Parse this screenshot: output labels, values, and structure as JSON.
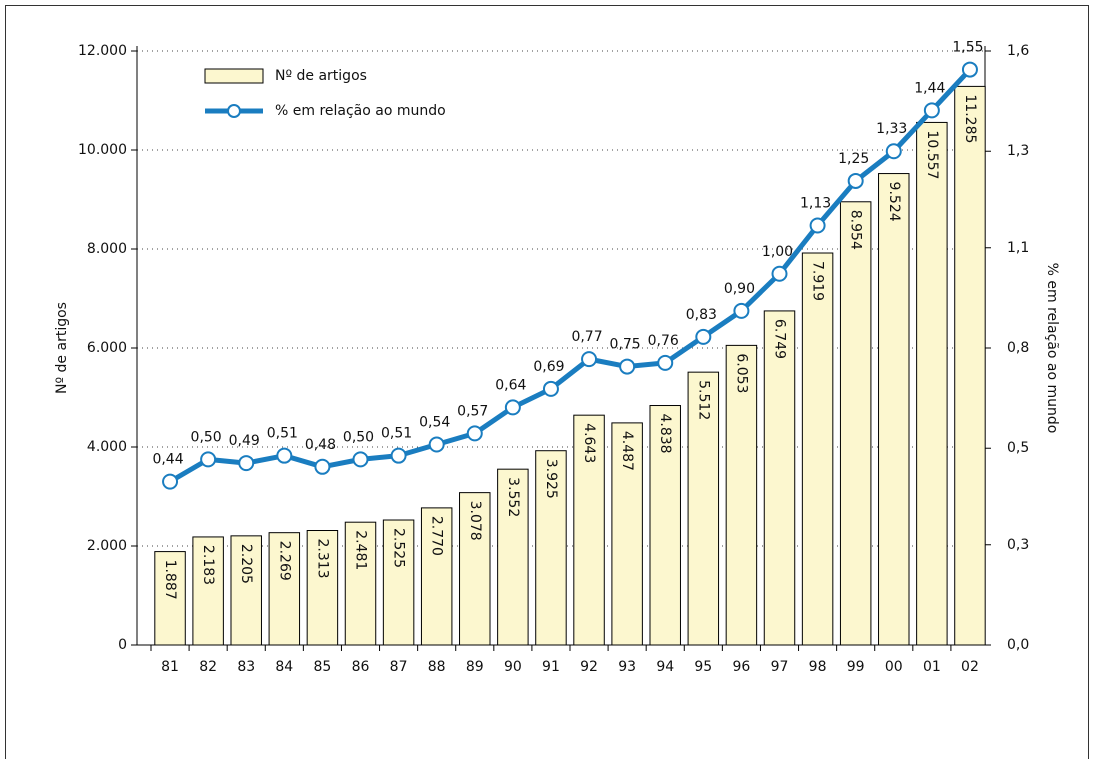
{
  "chart_data": {
    "type": "bar",
    "categories": [
      "81",
      "82",
      "83",
      "84",
      "85",
      "86",
      "87",
      "88",
      "89",
      "90",
      "91",
      "92",
      "93",
      "94",
      "95",
      "96",
      "97",
      "98",
      "99",
      "00",
      "01",
      "02"
    ],
    "series": [
      {
        "name": "Nº de artigos",
        "type": "bar",
        "color": "#fcf7cf",
        "values": [
          1887,
          2183,
          2205,
          2269,
          2313,
          2481,
          2525,
          2770,
          3078,
          3552,
          3925,
          4643,
          4487,
          4838,
          5512,
          6053,
          6749,
          7919,
          8954,
          9524,
          10557,
          11285
        ],
        "value_labels": [
          "1.887",
          "2.183",
          "2.205",
          "2.269",
          "2.313",
          "2.481",
          "2.525",
          "2.770",
          "3.078",
          "3.552",
          "3.925",
          "4.643",
          "4.487",
          "4.838",
          "5.512",
          "6.053",
          "6.749",
          "7.919",
          "8.954",
          "9.524",
          "10.557",
          "11.285"
        ]
      },
      {
        "name": "% em relação ao mundo",
        "type": "line",
        "axis": "y2",
        "color": "#1a7dc0",
        "values": [
          0.44,
          0.5,
          0.49,
          0.51,
          0.48,
          0.5,
          0.51,
          0.54,
          0.57,
          0.64,
          0.69,
          0.77,
          0.75,
          0.76,
          0.83,
          0.9,
          1.0,
          1.13,
          1.25,
          1.33,
          1.44,
          1.55
        ],
        "value_labels": [
          "0,44",
          "0,50",
          "0,49",
          "0,51",
          "0,48",
          "0,50",
          "0,51",
          "0,54",
          "0,57",
          "0,64",
          "0,69",
          "0,77",
          "0,75",
          "0,76",
          "0,83",
          "0,90",
          "1,00",
          "1,13",
          "1,25",
          "1,33",
          "1,44",
          "1,55"
        ]
      }
    ],
    "ylabel": "Nº de artigos",
    "y2label": "% em relação ao mundo",
    "ylim": [
      0,
      12000
    ],
    "yticks": [
      0,
      {
        "value": 2000,
        "label": "2.000"
      },
      {
        "value": 4000,
        "label": "4.000"
      },
      {
        "value": 6000,
        "label": "6.000"
      },
      {
        "value": 8000,
        "label": "8.000"
      },
      {
        "value": 10000,
        "label": "10.000"
      },
      {
        "value": 12000,
        "label": "12.000"
      }
    ],
    "y2lim": [
      0,
      1.6
    ],
    "y2ticks": [
      {
        "value": 0,
        "label": "0,0"
      },
      {
        "value": 0.27,
        "label": "0,3"
      },
      {
        "value": 0.53,
        "label": "0,5"
      },
      {
        "value": 0.8,
        "label": "0,8"
      },
      {
        "value": 1.07,
        "label": "1,1"
      },
      {
        "value": 1.33,
        "label": "1,3"
      },
      {
        "value": 1.6,
        "label": "1,6"
      }
    ],
    "grid": true,
    "legend": "upper left"
  }
}
